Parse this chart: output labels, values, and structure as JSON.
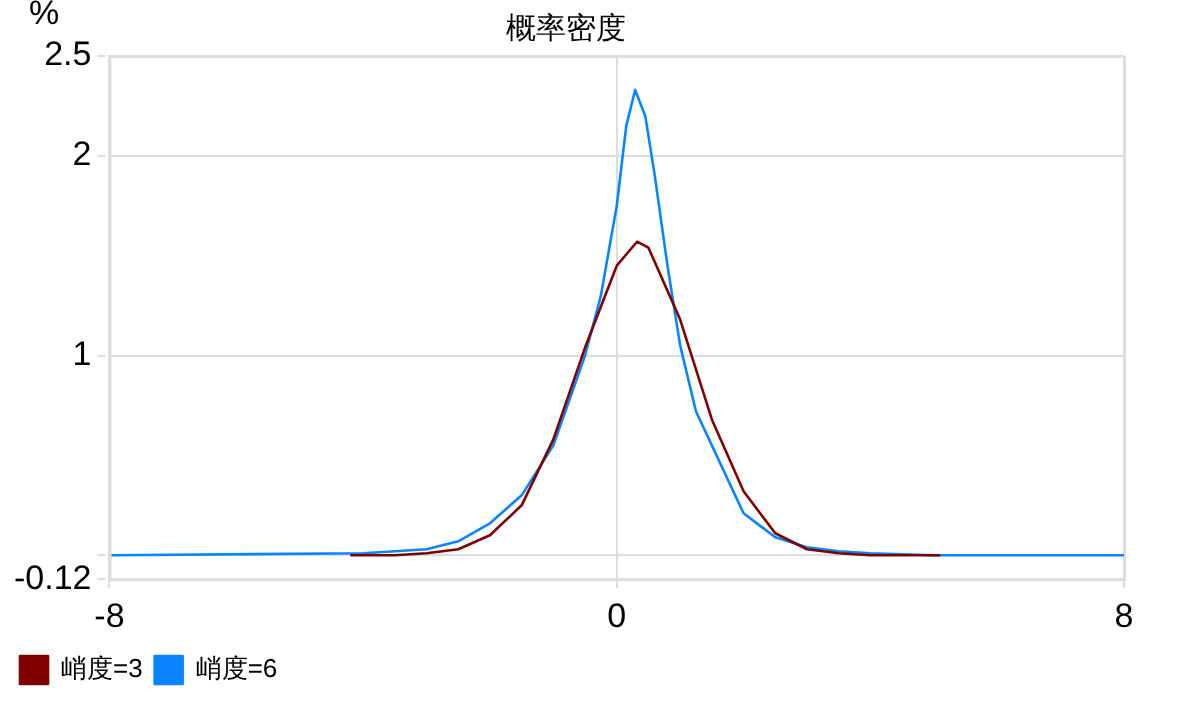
{
  "chart_data": {
    "type": "line",
    "title": "概率密度",
    "ylabel": "%",
    "xlim": [
      -8,
      8
    ],
    "xticks": [
      -8,
      0,
      8
    ],
    "ylim": [
      -0.12,
      2.5
    ],
    "yticks": [
      -0.12,
      {
        "value": 0,
        "label": null
      },
      1,
      2,
      2.5
    ],
    "grid": true,
    "legend": "bottom",
    "marker": "none",
    "series": [
      {
        "name": "峭度=3",
        "color": "#800000",
        "x": [
          -4.2,
          -3.5,
          -3,
          -2.5,
          -2,
          -1.5,
          -1,
          -0.5,
          0,
          0.32,
          0.5,
          1,
          1.5,
          2,
          2.5,
          3,
          3.5,
          4,
          5.1
        ],
        "values": [
          0,
          0,
          0.01,
          0.03,
          0.1,
          0.25,
          0.58,
          1.04,
          1.45,
          1.57,
          1.54,
          1.18,
          0.68,
          0.32,
          0.11,
          0.03,
          0.01,
          0,
          0
        ]
      },
      {
        "name": "峭度=6",
        "color": "#0a84ff",
        "x": [
          -8,
          -4,
          -3,
          -2.5,
          -2,
          -1.5,
          -1,
          -0.5,
          -0.25,
          0,
          0.15,
          0.29,
          0.45,
          0.6,
          0.8,
          1,
          1.25,
          1.5,
          2,
          2.5,
          3,
          3.5,
          4,
          5,
          8
        ],
        "values": [
          0,
          0.01,
          0.03,
          0.07,
          0.16,
          0.3,
          0.55,
          1.0,
          1.3,
          1.75,
          2.15,
          2.33,
          2.2,
          1.9,
          1.45,
          1.05,
          0.72,
          0.55,
          0.21,
          0.09,
          0.04,
          0.02,
          0.01,
          0,
          0
        ]
      }
    ]
  }
}
